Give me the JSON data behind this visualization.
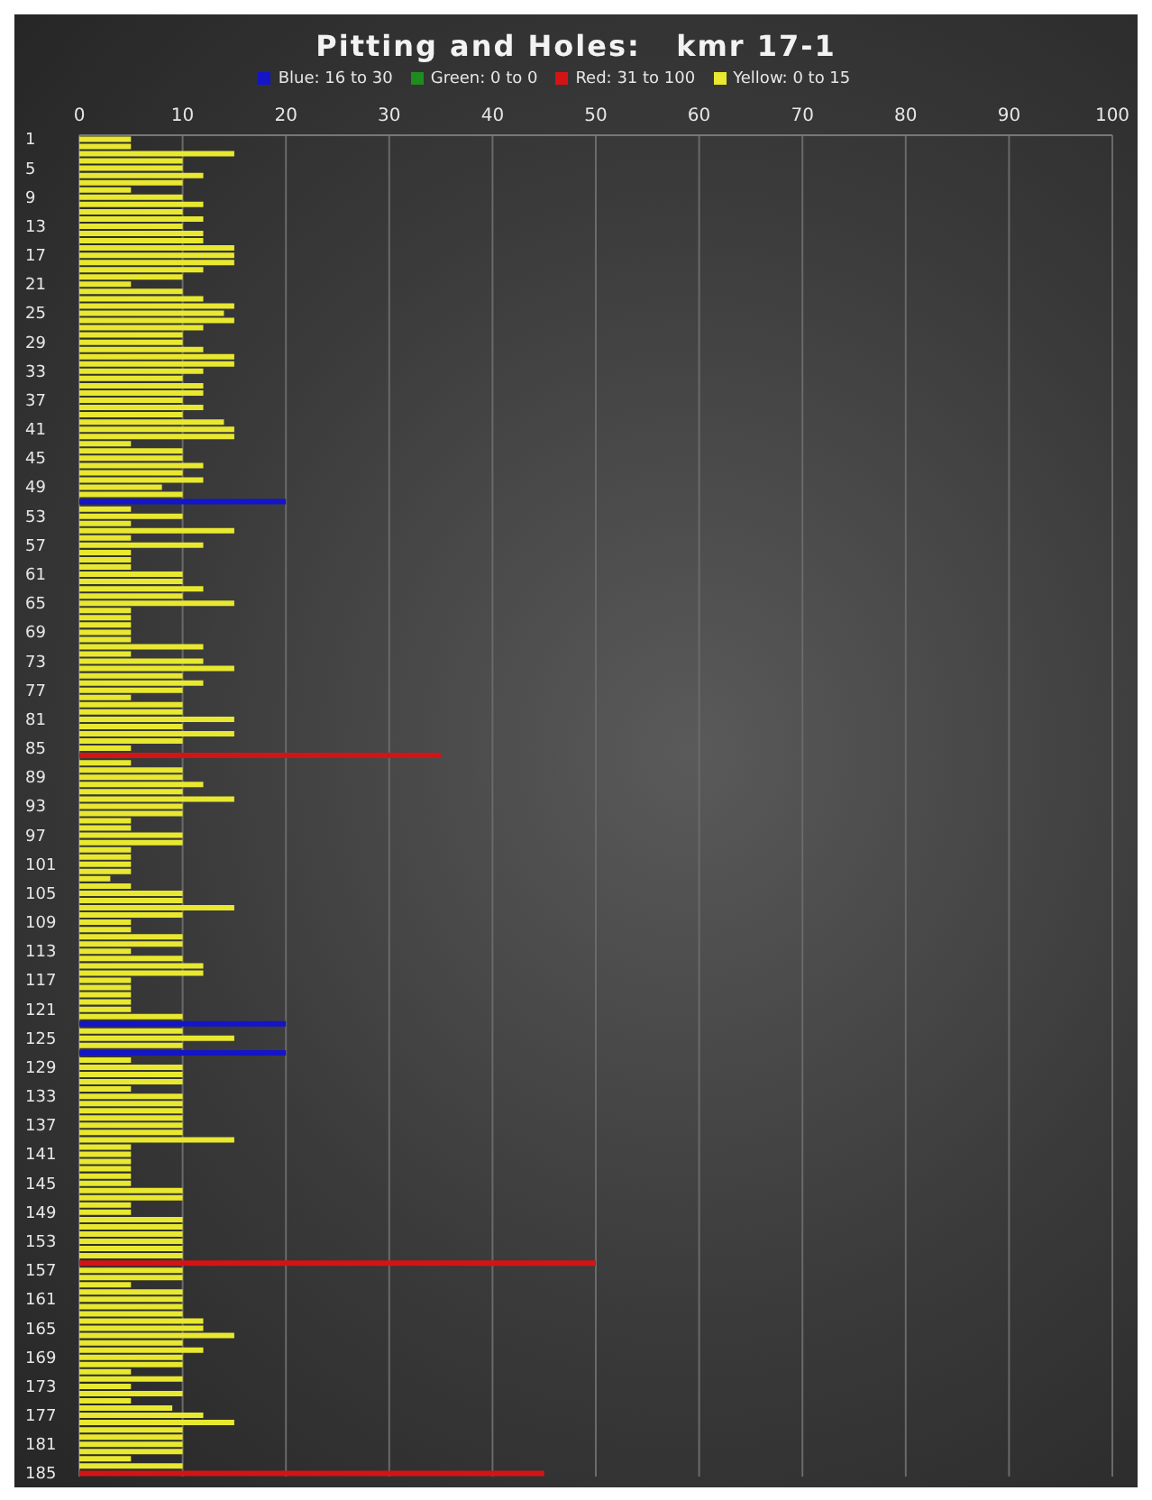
{
  "chart_data": {
    "type": "bar",
    "orientation": "horizontal",
    "stacked": true,
    "title": "Pitting and Holes:   kmr 17-1",
    "categories": [
      "1",
      null,
      null,
      null,
      "5",
      null,
      null,
      null,
      "9",
      null,
      null,
      null,
      "13",
      null,
      null,
      null,
      "17",
      null,
      null,
      null,
      "21",
      null,
      null,
      null,
      "25",
      null,
      null,
      null,
      "29",
      null,
      null,
      null,
      "33",
      null,
      null,
      null,
      "37",
      null,
      null,
      null,
      "41",
      null,
      null,
      null,
      "45",
      null,
      null,
      null,
      "49",
      null,
      null,
      null,
      "53",
      null,
      null,
      null,
      "57",
      null,
      null,
      null,
      "61",
      null,
      null,
      null,
      "65",
      null,
      null,
      null,
      "69",
      null,
      null,
      null,
      "73",
      null,
      null,
      null,
      "77",
      null,
      null,
      null,
      "81",
      null,
      null,
      null,
      "85",
      null,
      null,
      null,
      "89",
      null,
      null,
      null,
      "93",
      null,
      null,
      null,
      "97",
      null,
      null,
      null,
      "101",
      null,
      null,
      null,
      "105",
      null,
      null,
      null,
      "109",
      null,
      null,
      null,
      "113",
      null,
      null,
      null,
      "117",
      null,
      null,
      null,
      "121",
      null,
      null,
      null,
      "125",
      null,
      null,
      null,
      "129",
      null,
      null,
      null,
      "133",
      null,
      null,
      null,
      "137",
      null,
      null,
      null,
      "141",
      null,
      null,
      null,
      "145",
      null,
      null,
      null,
      "149",
      null,
      null,
      null,
      "153",
      null,
      null,
      null,
      "157",
      null,
      null,
      null,
      "161",
      null,
      null,
      null,
      "165",
      null,
      null,
      null,
      "169",
      null,
      null,
      null,
      "173",
      null,
      null,
      null,
      "177",
      null,
      null,
      null,
      "181",
      null,
      null,
      null,
      "185"
    ],
    "series": [
      {
        "name": "Yellow:  0 to 15",
        "color": "#e8e830",
        "values": [
          5,
          5,
          15,
          10,
          10,
          12,
          10,
          5,
          10,
          12,
          10,
          12,
          10,
          12,
          12,
          15,
          15,
          15,
          12,
          10,
          5,
          10,
          12,
          15,
          14,
          15,
          12,
          10,
          10,
          12,
          15,
          15,
          12,
          10,
          12,
          12,
          10,
          12,
          10,
          14,
          15,
          15,
          5,
          10,
          10,
          12,
          10,
          12,
          8,
          10,
          null,
          5,
          10,
          5,
          15,
          5,
          12,
          5,
          5,
          5,
          10,
          10,
          12,
          10,
          15,
          5,
          5,
          5,
          5,
          5,
          12,
          5,
          12,
          15,
          10,
          12,
          10,
          5,
          10,
          10,
          15,
          10,
          15,
          10,
          5,
          null,
          5,
          10,
          10,
          12,
          10,
          15,
          10,
          10,
          5,
          5,
          10,
          10,
          5,
          5,
          5,
          5,
          3,
          5,
          10,
          10,
          15,
          10,
          5,
          5,
          10,
          10,
          5,
          10,
          12,
          12,
          5,
          5,
          5,
          5,
          5,
          10,
          null,
          10,
          15,
          10,
          null,
          5,
          10,
          10,
          10,
          5,
          10,
          10,
          10,
          10,
          10,
          10,
          15,
          5,
          5,
          5,
          5,
          5,
          5,
          10,
          10,
          5,
          5,
          10,
          10,
          10,
          10,
          10,
          10,
          null,
          10,
          10,
          5,
          10,
          10,
          10,
          10,
          12,
          12,
          15,
          10,
          12,
          10,
          10,
          5,
          10,
          5,
          10,
          5,
          9,
          12,
          15,
          10,
          10,
          10,
          10,
          5,
          10,
          null
        ]
      },
      {
        "name": "Blue:  16 to 30",
        "color": "#1414c8",
        "values": [
          null,
          null,
          null,
          null,
          null,
          null,
          null,
          null,
          null,
          null,
          null,
          null,
          null,
          null,
          null,
          null,
          null,
          null,
          null,
          null,
          null,
          null,
          null,
          null,
          null,
          null,
          null,
          null,
          null,
          null,
          null,
          null,
          null,
          null,
          null,
          null,
          null,
          null,
          null,
          null,
          null,
          null,
          null,
          null,
          null,
          null,
          null,
          null,
          null,
          null,
          20,
          null,
          null,
          null,
          null,
          null,
          null,
          null,
          null,
          null,
          null,
          null,
          null,
          null,
          null,
          null,
          null,
          null,
          null,
          null,
          null,
          null,
          null,
          null,
          null,
          null,
          null,
          null,
          null,
          null,
          null,
          null,
          null,
          null,
          null,
          null,
          null,
          null,
          null,
          null,
          null,
          null,
          null,
          null,
          null,
          null,
          null,
          null,
          null,
          null,
          null,
          null,
          null,
          null,
          null,
          null,
          null,
          null,
          null,
          null,
          null,
          null,
          null,
          null,
          null,
          null,
          null,
          null,
          null,
          null,
          null,
          null,
          20,
          null,
          null,
          null,
          20,
          null,
          null,
          null,
          null,
          null,
          null,
          null,
          null,
          null,
          null,
          null,
          null,
          null,
          null,
          null,
          null,
          null,
          null,
          null,
          null,
          null,
          null,
          null,
          null,
          null,
          null,
          null,
          null,
          null,
          null,
          null,
          null,
          null,
          null,
          null,
          null,
          null,
          null,
          null,
          null,
          null,
          null,
          null,
          null,
          null,
          null,
          null,
          null,
          null,
          null,
          null,
          null,
          null,
          null,
          null,
          null,
          null,
          null
        ]
      },
      {
        "name": "Green:  0 to 0",
        "color": "#1e8c1e",
        "values": [
          null,
          null,
          null,
          null,
          null,
          null,
          null,
          null,
          null,
          null,
          null,
          null,
          null,
          null,
          null,
          null,
          null,
          null,
          null,
          null,
          null,
          null,
          null,
          null,
          null,
          null,
          null,
          null,
          null,
          null,
          null,
          null,
          null,
          null,
          null,
          null,
          null,
          null,
          null,
          null,
          null,
          null,
          null,
          null,
          null,
          null,
          null,
          null,
          null,
          null,
          null,
          null,
          null,
          null,
          null,
          null,
          null,
          null,
          null,
          null,
          null,
          null,
          null,
          null,
          null,
          null,
          null,
          null,
          null,
          null,
          null,
          null,
          null,
          null,
          null,
          null,
          null,
          null,
          null,
          null,
          null,
          null,
          null,
          null,
          null,
          null,
          null,
          null,
          null,
          null,
          null,
          null,
          null,
          null,
          null,
          null,
          null,
          null,
          null,
          null,
          null,
          null,
          null,
          null,
          null,
          null,
          null,
          null,
          null,
          null,
          null,
          null,
          null,
          null,
          null,
          null,
          null,
          null,
          null,
          null,
          null,
          null,
          null,
          null,
          null,
          null,
          null,
          null,
          null,
          null,
          null,
          null,
          null,
          null,
          null,
          null,
          null,
          null,
          null,
          null,
          null,
          null,
          null,
          null,
          null,
          null,
          null,
          null,
          null,
          null,
          null,
          null,
          null,
          null,
          null,
          null,
          null,
          null,
          null,
          null,
          null,
          null,
          null,
          null,
          null,
          null,
          null,
          null,
          null,
          null,
          null,
          null,
          null,
          null,
          null,
          null,
          null,
          null,
          null,
          null,
          null,
          null,
          null,
          null,
          null
        ]
      },
      {
        "name": "Red:  31 to 100",
        "color": "#d41414",
        "values": [
          null,
          null,
          null,
          null,
          null,
          null,
          null,
          null,
          null,
          null,
          null,
          null,
          null,
          null,
          null,
          null,
          null,
          null,
          null,
          null,
          null,
          null,
          null,
          null,
          null,
          null,
          null,
          null,
          null,
          null,
          null,
          null,
          null,
          null,
          null,
          null,
          null,
          null,
          null,
          null,
          null,
          null,
          null,
          null,
          null,
          null,
          null,
          null,
          null,
          null,
          null,
          null,
          null,
          null,
          null,
          null,
          null,
          null,
          null,
          null,
          null,
          null,
          null,
          null,
          null,
          null,
          null,
          null,
          null,
          null,
          null,
          null,
          null,
          null,
          null,
          null,
          null,
          null,
          null,
          null,
          null,
          null,
          null,
          null,
          null,
          35,
          null,
          null,
          null,
          null,
          null,
          null,
          null,
          null,
          null,
          null,
          null,
          null,
          null,
          null,
          null,
          null,
          null,
          null,
          null,
          null,
          null,
          null,
          null,
          null,
          null,
          null,
          null,
          null,
          null,
          null,
          null,
          null,
          null,
          null,
          null,
          null,
          null,
          null,
          null,
          null,
          null,
          null,
          null,
          null,
          null,
          null,
          null,
          null,
          null,
          null,
          null,
          null,
          null,
          null,
          null,
          null,
          null,
          null,
          null,
          null,
          null,
          null,
          null,
          null,
          null,
          null,
          null,
          null,
          null,
          50,
          null,
          null,
          null,
          null,
          null,
          null,
          null,
          null,
          null,
          null,
          null,
          null,
          null,
          null,
          null,
          null,
          null,
          null,
          null,
          null,
          null,
          null,
          null,
          null,
          null,
          null,
          null,
          null,
          45
        ]
      }
    ],
    "xlim": [
      0,
      100
    ],
    "xticks": [
      0,
      10,
      20,
      30,
      40,
      50,
      60,
      70,
      80,
      90,
      100
    ],
    "grid": "x",
    "legend": "top"
  }
}
